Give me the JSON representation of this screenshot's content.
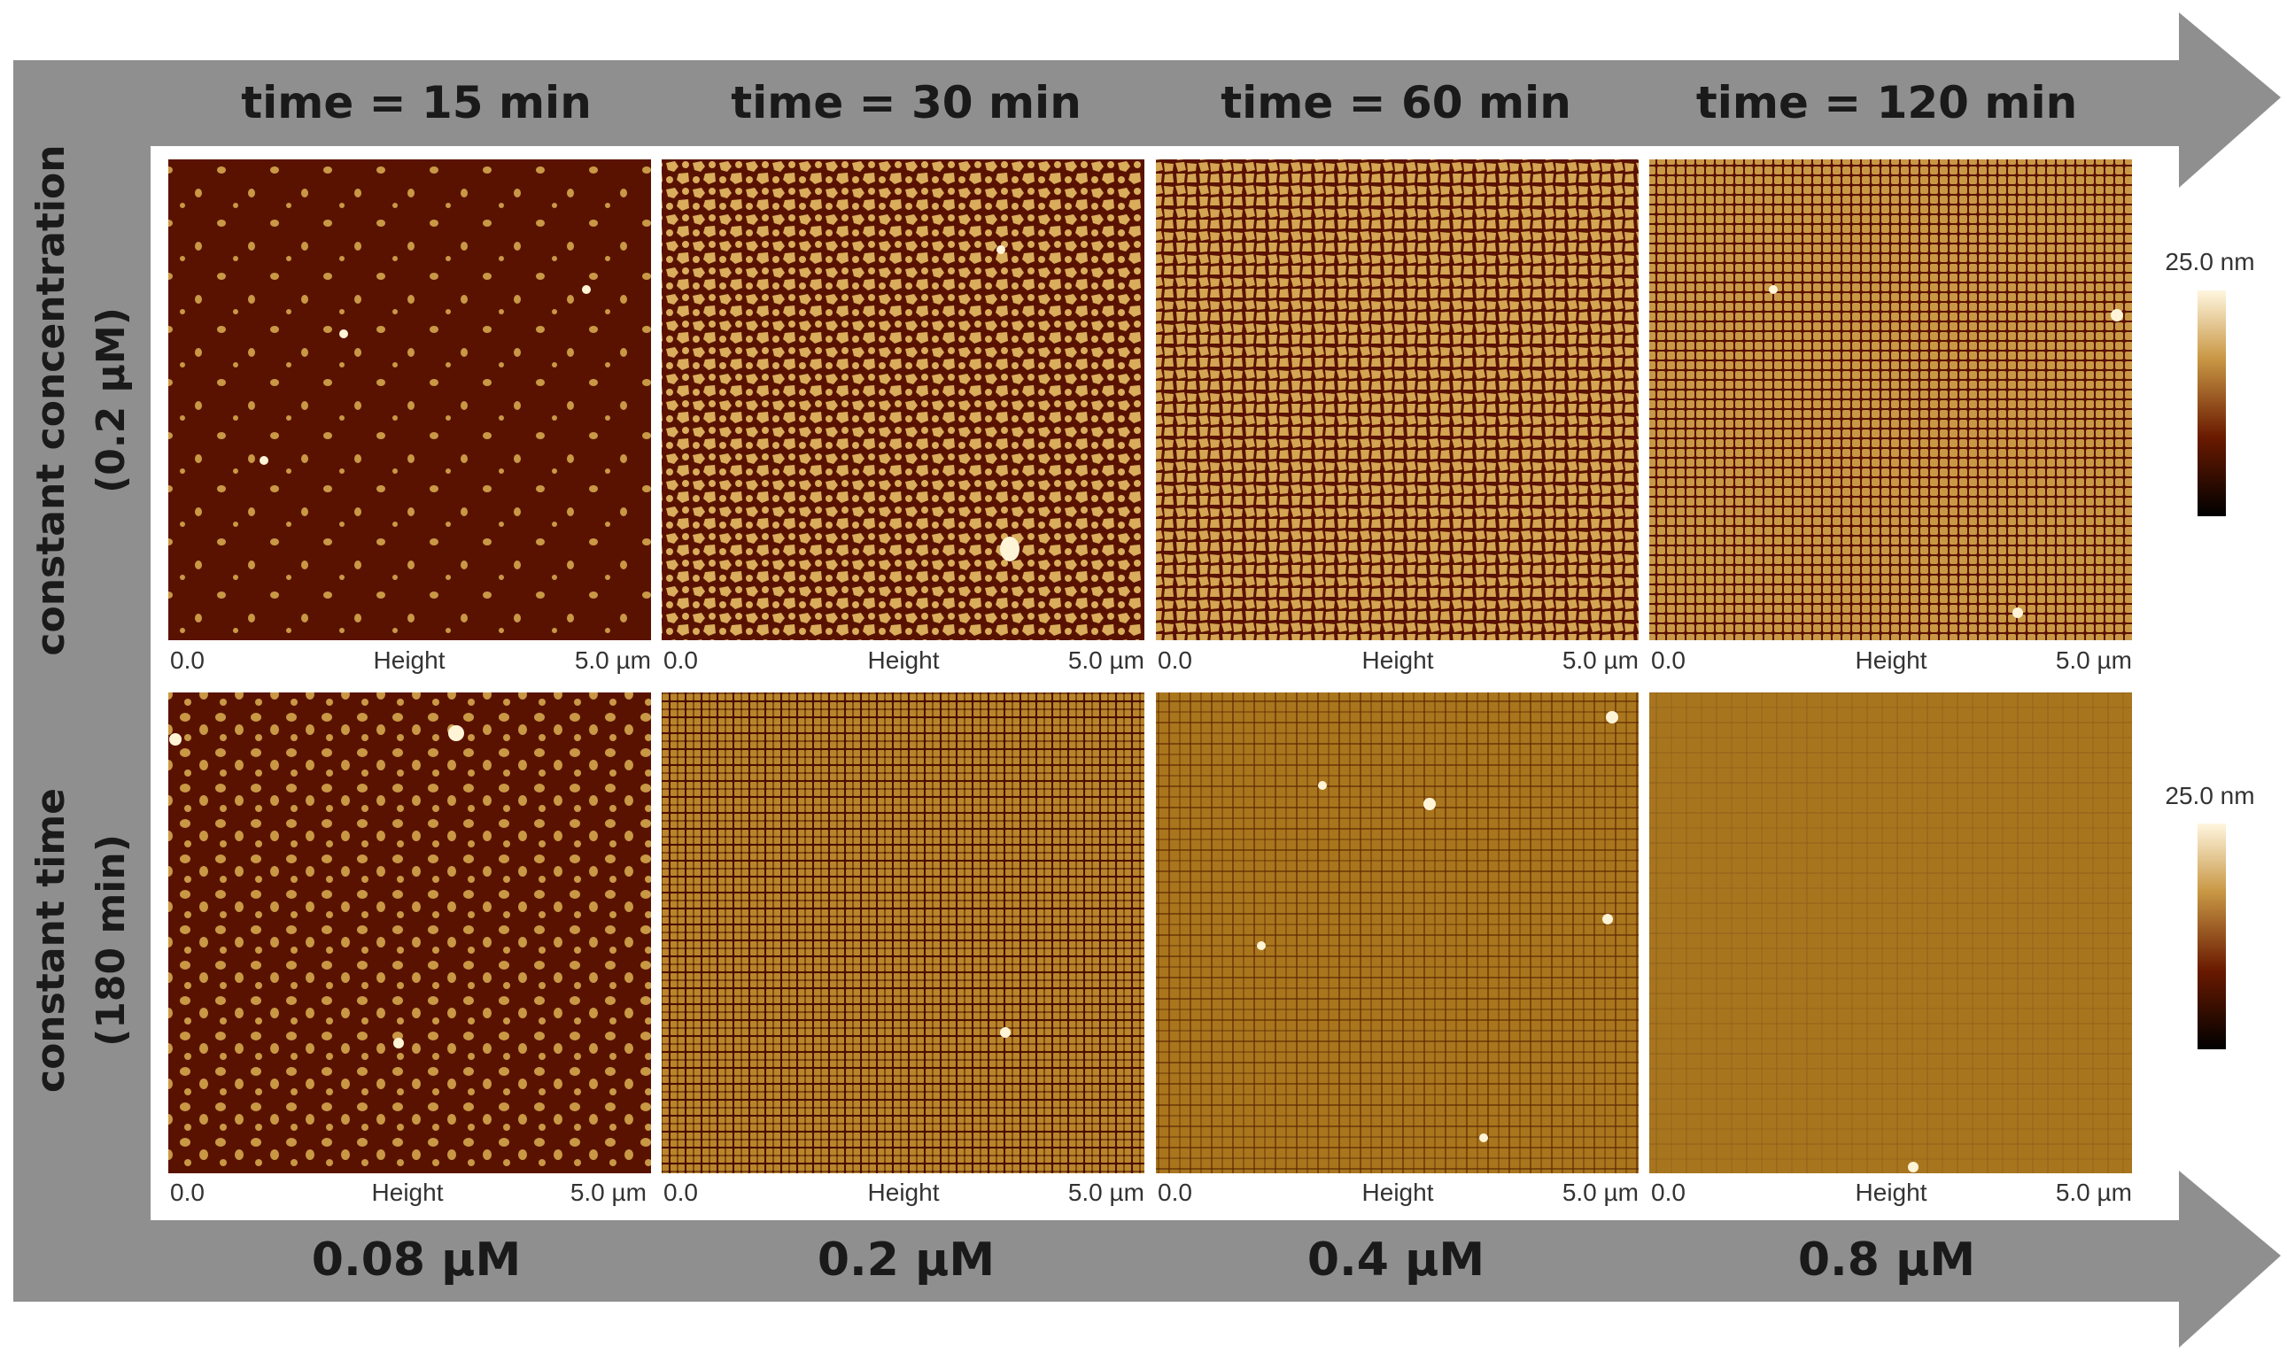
{
  "figure": {
    "column_headers": [
      "time = 15 min",
      "time = 30 min",
      "time = 60 min",
      "time = 120 min"
    ],
    "row_headers": [
      {
        "line1": "constant concentration",
        "line2": "(0.2 µM)"
      },
      {
        "line1": "constant time",
        "line2": "(180 min)"
      }
    ],
    "column_footers": [
      "0.08 µM",
      "0.2 µM",
      "0.4 µM",
      "0.8 µM"
    ],
    "axis_labels": {
      "start": "0.0",
      "middle": "Height",
      "end": "5.0 µm"
    },
    "colorbar_label": "25.0 nm",
    "colors": {
      "arrow": "#8f8f8f",
      "substrate": "#5a1200",
      "feature": "#c99845",
      "highlight": "#fff4d6"
    },
    "panels": [
      [
        {
          "coverage": 0.12
        },
        {
          "coverage": 0.55
        },
        {
          "coverage": 0.62
        },
        {
          "coverage": 0.72
        }
      ],
      [
        {
          "coverage": 0.28
        },
        {
          "coverage": 0.8
        },
        {
          "coverage": 0.92
        },
        {
          "coverage": 0.98
        }
      ]
    ]
  }
}
